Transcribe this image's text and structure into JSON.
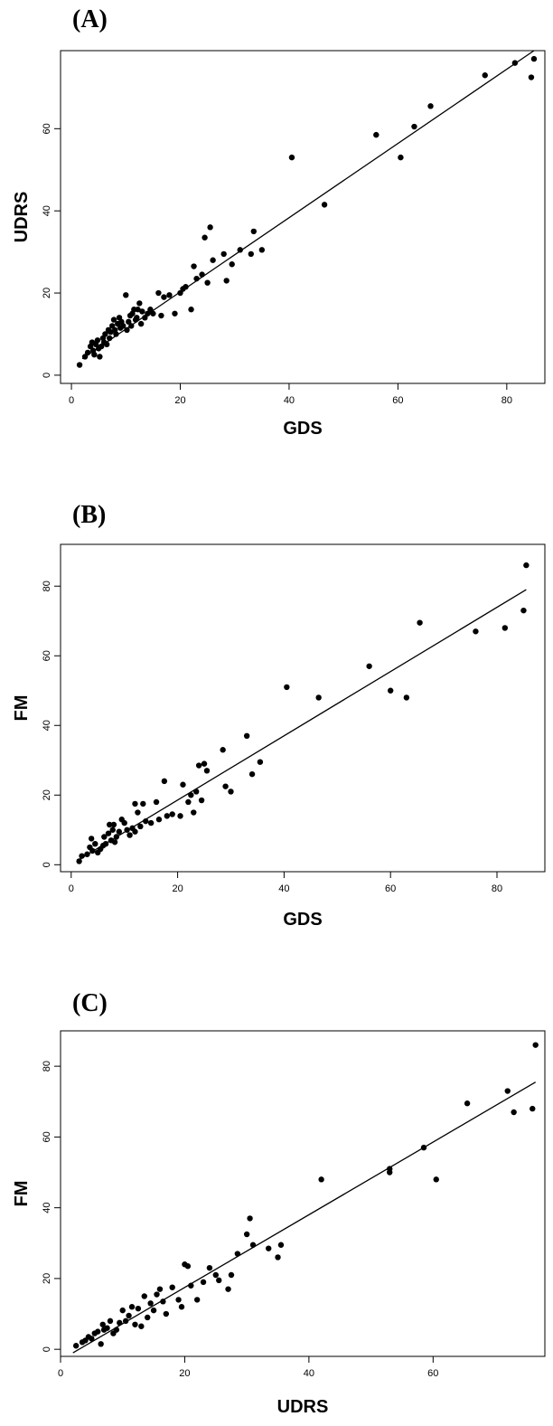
{
  "chart_data": [
    {
      "type": "scatter",
      "panel_label": "(A)",
      "xlabel": "GDS",
      "ylabel": "UDRS",
      "xticks": [
        0,
        20,
        40,
        60,
        80
      ],
      "yticks": [
        0,
        20,
        40,
        60
      ],
      "xlim": [
        -2,
        87
      ],
      "ylim": [
        -2,
        79
      ],
      "grid": false,
      "fit_line": [
        [
          2,
          4
        ],
        [
          85,
          79
        ]
      ],
      "points": [
        [
          1.5,
          2.5
        ],
        [
          2.5,
          4.5
        ],
        [
          3,
          5.5
        ],
        [
          3.5,
          7
        ],
        [
          3.8,
          8
        ],
        [
          4,
          6
        ],
        [
          4.2,
          5
        ],
        [
          4.5,
          7.5
        ],
        [
          4.8,
          8.5
        ],
        [
          5,
          6.5
        ],
        [
          5.2,
          4.5
        ],
        [
          5.5,
          7
        ],
        [
          5.8,
          9
        ],
        [
          6,
          8
        ],
        [
          6.2,
          10
        ],
        [
          6.5,
          7.5
        ],
        [
          6.8,
          11
        ],
        [
          7,
          9
        ],
        [
          7.2,
          10.5
        ],
        [
          7.5,
          12
        ],
        [
          7.8,
          13.5
        ],
        [
          8,
          11
        ],
        [
          8.2,
          10
        ],
        [
          8.5,
          12.5
        ],
        [
          8.8,
          14
        ],
        [
          9,
          11.5
        ],
        [
          9.2,
          13
        ],
        [
          9.5,
          12
        ],
        [
          10,
          19.5
        ],
        [
          10.2,
          11
        ],
        [
          10.5,
          13
        ],
        [
          10.8,
          14.5
        ],
        [
          11,
          12
        ],
        [
          11.2,
          15
        ],
        [
          11.5,
          16
        ],
        [
          11.8,
          13.5
        ],
        [
          12,
          14
        ],
        [
          12.2,
          16
        ],
        [
          12.5,
          17.5
        ],
        [
          12.8,
          12.5
        ],
        [
          13,
          15.5
        ],
        [
          13.5,
          14
        ],
        [
          14,
          15
        ],
        [
          14.5,
          16
        ],
        [
          15,
          15
        ],
        [
          16,
          20
        ],
        [
          16.5,
          14.5
        ],
        [
          17,
          19
        ],
        [
          18,
          19.5
        ],
        [
          19,
          15
        ],
        [
          20,
          20
        ],
        [
          20.5,
          21
        ],
        [
          21,
          21.5
        ],
        [
          22,
          16
        ],
        [
          22.5,
          26.5
        ],
        [
          23,
          23.5
        ],
        [
          24,
          24.5
        ],
        [
          24.5,
          33.5
        ],
        [
          25,
          22.5
        ],
        [
          25.5,
          36
        ],
        [
          26,
          28
        ],
        [
          28,
          29.5
        ],
        [
          28.5,
          23
        ],
        [
          29.5,
          27
        ],
        [
          31,
          30.5
        ],
        [
          33,
          29.5
        ],
        [
          33.5,
          35
        ],
        [
          35,
          30.5
        ],
        [
          40.5,
          53
        ],
        [
          46.5,
          41.5
        ],
        [
          56,
          58.5
        ],
        [
          60.5,
          53
        ],
        [
          63,
          60.5
        ],
        [
          66,
          65.5
        ],
        [
          76,
          73
        ],
        [
          81.5,
          76
        ],
        [
          84.5,
          72.5
        ],
        [
          85,
          77
        ]
      ]
    },
    {
      "type": "scatter",
      "panel_label": "(B)",
      "xlabel": "GDS",
      "ylabel": "FM",
      "xticks": [
        0,
        20,
        40,
        60,
        80
      ],
      "yticks": [
        0,
        20,
        40,
        60,
        80
      ],
      "xlim": [
        -2,
        89
      ],
      "ylim": [
        -2,
        92
      ],
      "grid": false,
      "fit_line": [
        [
          1.5,
          1.5
        ],
        [
          85.5,
          79
        ]
      ],
      "points": [
        [
          1.5,
          1
        ],
        [
          2,
          2.5
        ],
        [
          3,
          3
        ],
        [
          3.5,
          5
        ],
        [
          3.8,
          7.5
        ],
        [
          4,
          4
        ],
        [
          4.5,
          6
        ],
        [
          5,
          3.5
        ],
        [
          5.5,
          4.5
        ],
        [
          6,
          5.5
        ],
        [
          6.2,
          8
        ],
        [
          6.5,
          6
        ],
        [
          7,
          9
        ],
        [
          7.2,
          11.5
        ],
        [
          7.5,
          7
        ],
        [
          7.8,
          10
        ],
        [
          8,
          11.5
        ],
        [
          8.2,
          6.5
        ],
        [
          8.5,
          8
        ],
        [
          9,
          9.5
        ],
        [
          9.5,
          13
        ],
        [
          10,
          12
        ],
        [
          10.5,
          10
        ],
        [
          11,
          8.5
        ],
        [
          11.5,
          10.5
        ],
        [
          12,
          9.5
        ],
        [
          12,
          17.5
        ],
        [
          12.5,
          15
        ],
        [
          13,
          11
        ],
        [
          13.5,
          17.5
        ],
        [
          14,
          12.5
        ],
        [
          15,
          12
        ],
        [
          16,
          18
        ],
        [
          16.5,
          13
        ],
        [
          17.5,
          24
        ],
        [
          18,
          14
        ],
        [
          19,
          14.5
        ],
        [
          20.5,
          14
        ],
        [
          21,
          23
        ],
        [
          22,
          18
        ],
        [
          22.5,
          20
        ],
        [
          23,
          15
        ],
        [
          23.5,
          21
        ],
        [
          24,
          28.5
        ],
        [
          24.5,
          18.5
        ],
        [
          25,
          29
        ],
        [
          25.5,
          27
        ],
        [
          28.5,
          33
        ],
        [
          29,
          22.5
        ],
        [
          30,
          21
        ],
        [
          33,
          37
        ],
        [
          34,
          26
        ],
        [
          35.5,
          29.5
        ],
        [
          40.5,
          51
        ],
        [
          46.5,
          48
        ],
        [
          56,
          57
        ],
        [
          60,
          50
        ],
        [
          63,
          48
        ],
        [
          65.5,
          69.5
        ],
        [
          76,
          67
        ],
        [
          81.5,
          68
        ],
        [
          85,
          73
        ],
        [
          85.5,
          86
        ]
      ]
    },
    {
      "type": "scatter",
      "panel_label": "(C)",
      "xlabel": "UDRS",
      "ylabel": "FM",
      "xticks": [
        0,
        20,
        40,
        60
      ],
      "yticks": [
        0,
        20,
        40,
        60,
        80
      ],
      "xlim": [
        0,
        78
      ],
      "ylim": [
        -2,
        90
      ],
      "grid": false,
      "fit_line": [
        [
          2,
          -1
        ],
        [
          76.5,
          75.5
        ]
      ],
      "points": [
        [
          2.5,
          1
        ],
        [
          3.5,
          2
        ],
        [
          4,
          2.5
        ],
        [
          4.5,
          3.5
        ],
        [
          5,
          3
        ],
        [
          5.5,
          4.5
        ],
        [
          6,
          5
        ],
        [
          6.5,
          1.5
        ],
        [
          6.8,
          7
        ],
        [
          7,
          5.5
        ],
        [
          7.5,
          6
        ],
        [
          8,
          8
        ],
        [
          8.5,
          4.5
        ],
        [
          9,
          5.5
        ],
        [
          9.5,
          7.5
        ],
        [
          10,
          11
        ],
        [
          10.5,
          8
        ],
        [
          11,
          9.5
        ],
        [
          11.5,
          12
        ],
        [
          12,
          7
        ],
        [
          12.5,
          11.5
        ],
        [
          13,
          6.5
        ],
        [
          13.5,
          15
        ],
        [
          14,
          9
        ],
        [
          14.5,
          13
        ],
        [
          15,
          11
        ],
        [
          15.5,
          15.5
        ],
        [
          16,
          17
        ],
        [
          16.5,
          13.5
        ],
        [
          17,
          10
        ],
        [
          18,
          17.5
        ],
        [
          19,
          14
        ],
        [
          19.5,
          12
        ],
        [
          20,
          24
        ],
        [
          20.5,
          23.5
        ],
        [
          21,
          18
        ],
        [
          22,
          14
        ],
        [
          23,
          19
        ],
        [
          24,
          23
        ],
        [
          25,
          21
        ],
        [
          25.5,
          19.5
        ],
        [
          27,
          17
        ],
        [
          27.5,
          21
        ],
        [
          28.5,
          27
        ],
        [
          30,
          32.5
        ],
        [
          30.5,
          37
        ],
        [
          31,
          29.5
        ],
        [
          33.5,
          28.5
        ],
        [
          35,
          26
        ],
        [
          35.5,
          29.5
        ],
        [
          42,
          48
        ],
        [
          53,
          50
        ],
        [
          53,
          51
        ],
        [
          58.5,
          57
        ],
        [
          60.5,
          48
        ],
        [
          65.5,
          69.5
        ],
        [
          72,
          73
        ],
        [
          73,
          67
        ],
        [
          76,
          68
        ],
        [
          76.5,
          86
        ]
      ]
    }
  ]
}
